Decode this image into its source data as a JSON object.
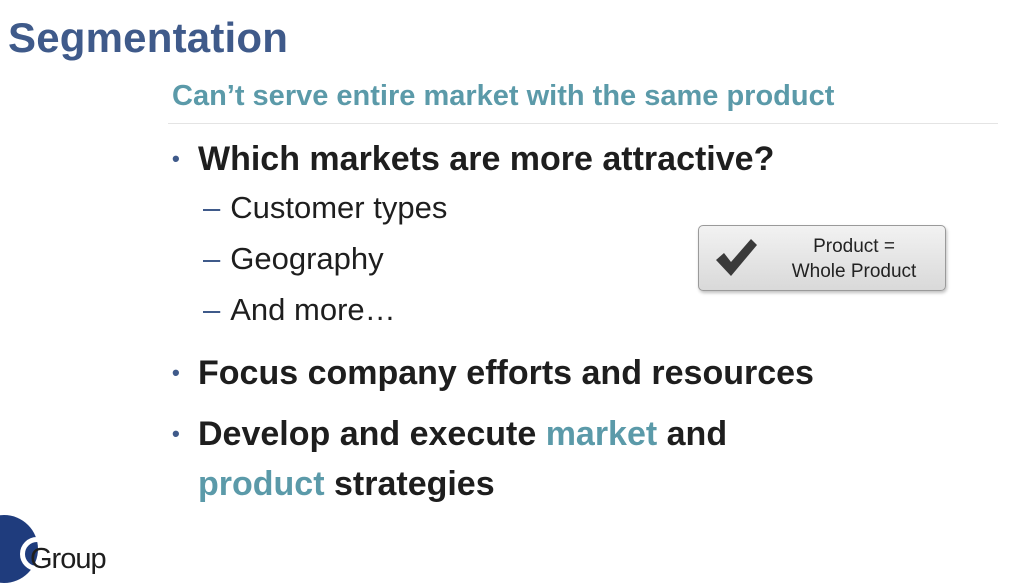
{
  "slide": {
    "title": "Segmentation",
    "subtitle": "Can’t serve entire market with the same product",
    "bullet_marker": "•",
    "dash_marker": "–",
    "bullets": [
      {
        "text": "Which markets are more attractive?"
      },
      {
        "text": "Focus company efforts and resources"
      },
      {
        "part1": "Develop and execute ",
        "highlight1": "market",
        "part2": " and",
        "highlight2": "product",
        "part3": " strategies"
      }
    ],
    "sub_bullets": [
      "Customer types",
      "Geography",
      "And more…"
    ],
    "callout": {
      "line1": "Product =",
      "line2": "Whole Product"
    },
    "logo": {
      "text": "Group"
    },
    "colors": {
      "title": "#3f5a8a",
      "accent": "#5b9aa9",
      "body": "#1e1e1e"
    }
  }
}
